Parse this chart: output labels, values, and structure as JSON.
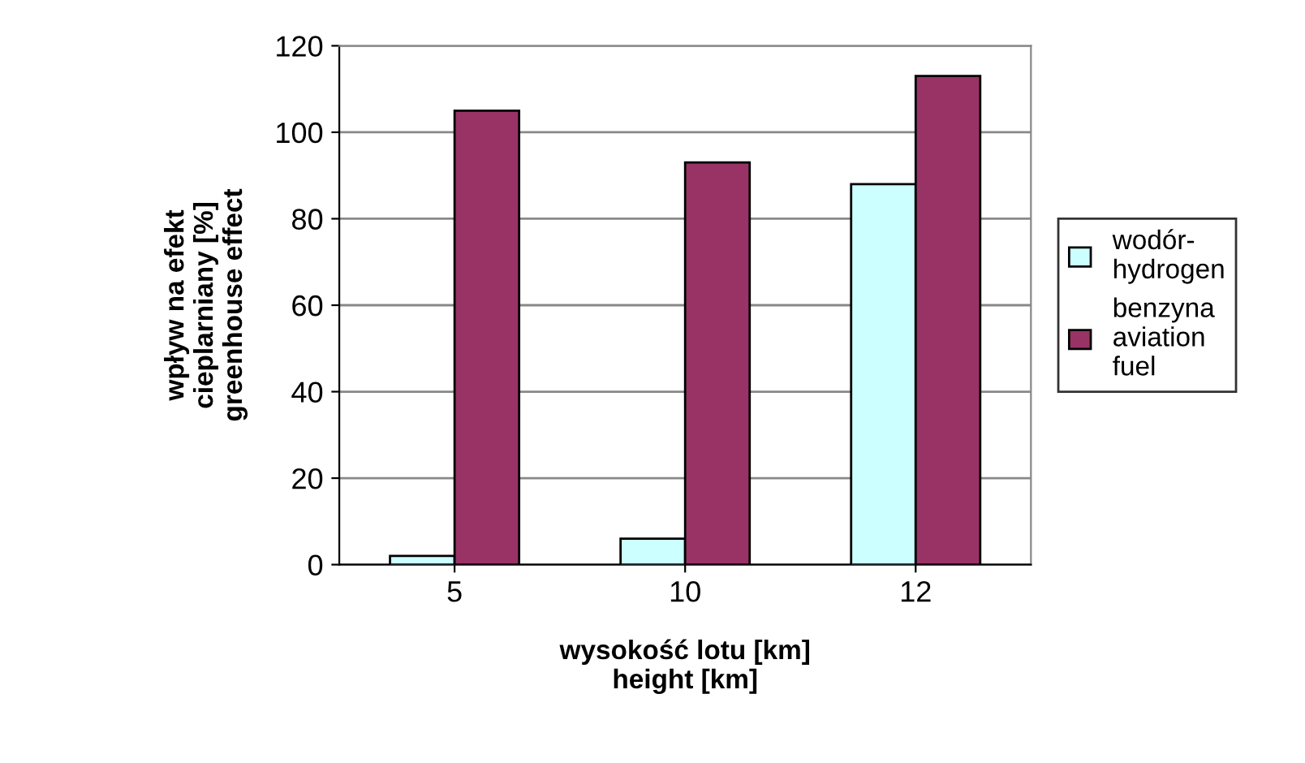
{
  "chart_data": {
    "type": "bar",
    "xlabel": "wysokość lotu [km]\nheight [km]",
    "ylabel": "wpływ na efekt\ncieplarniany [%]\ngreenhouse effect",
    "categories": [
      "5",
      "10",
      "12"
    ],
    "series": [
      {
        "name": "wodór-\nhydrogen",
        "color": "#ccffff",
        "values": [
          2,
          6,
          88
        ]
      },
      {
        "name": "benzyna\naviation\nfuel",
        "color": "#993366",
        "values": [
          105,
          93,
          113
        ]
      }
    ],
    "ylim": [
      0,
      120
    ],
    "yticks": [
      0,
      20,
      40,
      60,
      80,
      100,
      120
    ],
    "grid": "y",
    "legend": "right"
  }
}
